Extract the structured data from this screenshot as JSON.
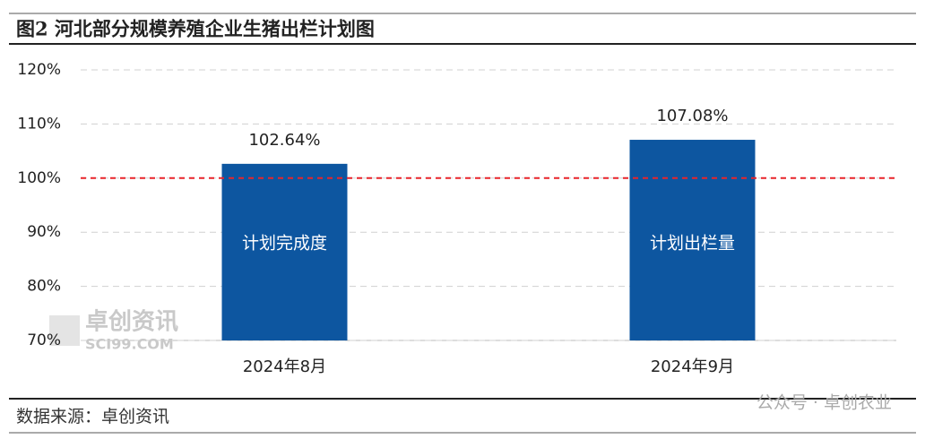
{
  "chart_data": {
    "type": "bar",
    "title": "图2 河北部分规模养殖企业生猪出栏计划图",
    "categories": [
      "2024年8月",
      "2024年9月"
    ],
    "values": [
      102.64,
      107.08
    ],
    "value_labels": [
      "102.64%",
      "107.08%"
    ],
    "bar_labels": [
      "计划完成度",
      "计划出栏量"
    ],
    "color": "#0d56a0",
    "ylim": [
      70,
      120
    ],
    "yticks": [
      {
        "value": 70,
        "label": "70%"
      },
      {
        "value": 80,
        "label": "80%"
      },
      {
        "value": 90,
        "label": "90%"
      },
      {
        "value": 100,
        "label": "100%"
      },
      {
        "value": 110,
        "label": "110%"
      },
      {
        "value": 120,
        "label": "120%"
      }
    ],
    "grid": true,
    "reference_line": {
      "value": 100,
      "color": "#e8242a"
    },
    "source": "数据来源：卓创资讯",
    "watermarks": [
      "卓创资讯",
      "SCI99.COM",
      "公众号 · 卓创农业"
    ]
  }
}
